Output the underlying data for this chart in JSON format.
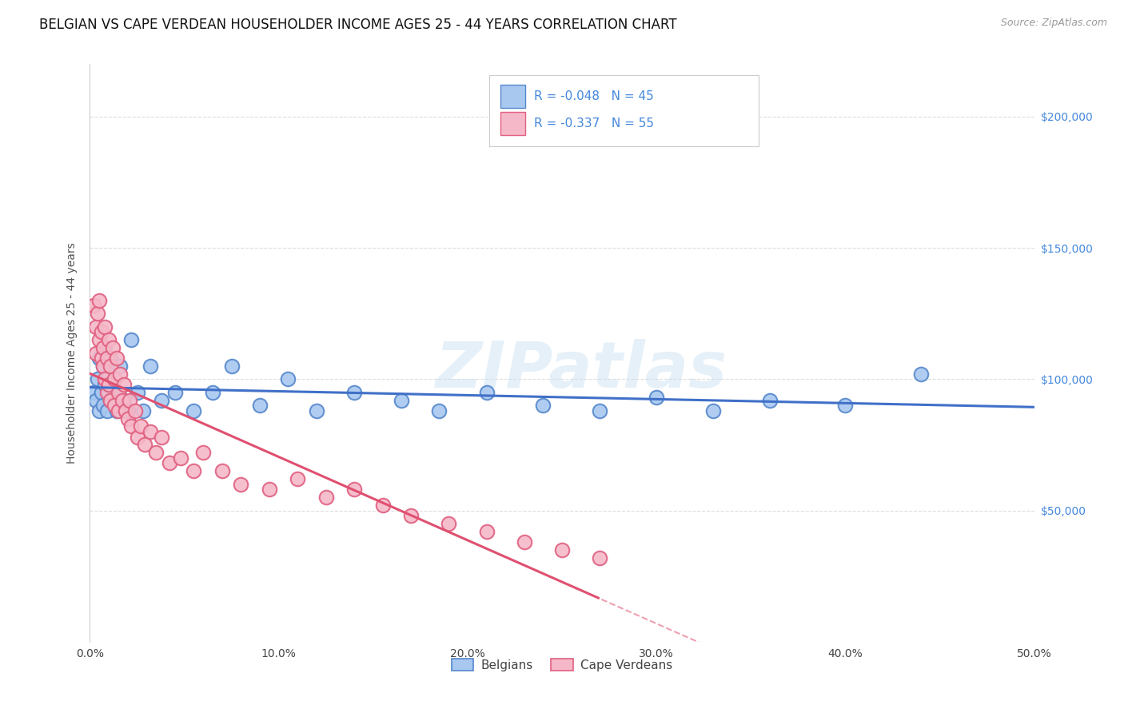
{
  "title": "BELGIAN VS CAPE VERDEAN HOUSEHOLDER INCOME AGES 25 - 44 YEARS CORRELATION CHART",
  "source": "Source: ZipAtlas.com",
  "ylabel": "Householder Income Ages 25 - 44 years",
  "legend1_r": "R = -0.048",
  "legend1_n": "N = 45",
  "legend2_r": "R = -0.337",
  "legend2_n": "N = 55",
  "belgian_fill": "#a8c8f0",
  "cape_fill": "#f5b8c8",
  "belgian_edge": "#5588cc",
  "cape_edge": "#e06080",
  "belgian_line": "#4070c8",
  "cape_line": "#e05070",
  "legend_r_color": "#4488dd",
  "right_tick_color": "#4488dd",
  "watermark": "ZIPatlas",
  "belgians_x": [
    0.2,
    0.3,
    0.4,
    0.5,
    0.5,
    0.6,
    0.7,
    0.7,
    0.8,
    0.8,
    0.9,
    1.0,
    1.0,
    1.1,
    1.1,
    1.2,
    1.3,
    1.4,
    1.5,
    1.6,
    1.8,
    2.0,
    2.2,
    2.5,
    2.8,
    3.2,
    3.8,
    4.5,
    5.5,
    6.5,
    7.5,
    9.0,
    10.5,
    12.0,
    14.0,
    16.5,
    18.5,
    21.0,
    24.0,
    27.0,
    30.0,
    33.0,
    36.0,
    40.0,
    44.0
  ],
  "belgians_y": [
    95000,
    92000,
    100000,
    88000,
    108000,
    95000,
    105000,
    90000,
    98000,
    112000,
    88000,
    102000,
    95000,
    108000,
    92000,
    96000,
    100000,
    88000,
    95000,
    105000,
    92000,
    88000,
    115000,
    95000,
    88000,
    105000,
    92000,
    95000,
    88000,
    95000,
    105000,
    90000,
    100000,
    88000,
    95000,
    92000,
    88000,
    95000,
    90000,
    88000,
    93000,
    88000,
    92000,
    90000,
    102000
  ],
  "cape_x": [
    0.2,
    0.3,
    0.3,
    0.4,
    0.5,
    0.5,
    0.6,
    0.6,
    0.7,
    0.7,
    0.8,
    0.8,
    0.9,
    0.9,
    1.0,
    1.0,
    1.1,
    1.1,
    1.2,
    1.3,
    1.3,
    1.4,
    1.5,
    1.5,
    1.6,
    1.7,
    1.8,
    1.9,
    2.0,
    2.1,
    2.2,
    2.4,
    2.5,
    2.7,
    2.9,
    3.2,
    3.5,
    3.8,
    4.2,
    4.8,
    5.5,
    6.0,
    7.0,
    8.0,
    9.5,
    11.0,
    12.5,
    14.0,
    15.5,
    17.0,
    19.0,
    21.0,
    23.0,
    25.0,
    27.0
  ],
  "cape_y": [
    128000,
    120000,
    110000,
    125000,
    130000,
    115000,
    118000,
    108000,
    112000,
    105000,
    120000,
    100000,
    108000,
    95000,
    115000,
    98000,
    105000,
    92000,
    112000,
    100000,
    90000,
    108000,
    95000,
    88000,
    102000,
    92000,
    98000,
    88000,
    85000,
    92000,
    82000,
    88000,
    78000,
    82000,
    75000,
    80000,
    72000,
    78000,
    68000,
    70000,
    65000,
    72000,
    65000,
    60000,
    58000,
    62000,
    55000,
    58000,
    52000,
    48000,
    45000,
    42000,
    38000,
    35000,
    32000
  ],
  "xlim": [
    0,
    50
  ],
  "ylim": [
    0,
    220000
  ],
  "yticks": [
    0,
    50000,
    100000,
    150000,
    200000
  ],
  "ytick_labels_right": [
    "",
    "$50,000",
    "$100,000",
    "$150,000",
    "$200,000"
  ],
  "xticks": [
    0,
    10,
    20,
    30,
    40,
    50
  ],
  "xtick_labels": [
    "0.0%",
    "10.0%",
    "20.0%",
    "30.0%",
    "40.0%",
    "50.0%"
  ],
  "grid_color": "#dddddd",
  "bg_color": "#ffffff",
  "title_fontsize": 12,
  "axis_label_fontsize": 10,
  "tick_fontsize": 10,
  "legend_fontsize": 11,
  "source_fontsize": 9
}
